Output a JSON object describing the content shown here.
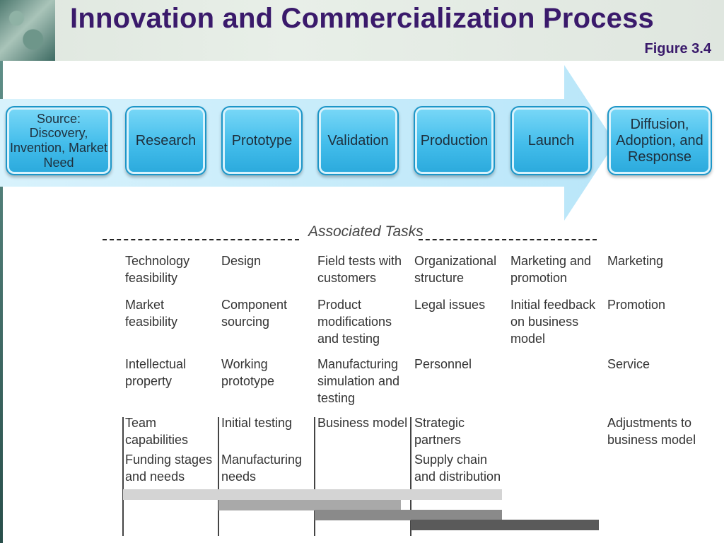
{
  "title": "Innovation and Commercialization Process",
  "figure_label": "Figure 3.4",
  "stages": [
    "Source: Discovery, Invention, Market Need",
    "Research",
    "Prototype",
    "Validation",
    "Production",
    "Launch",
    "Diffusion, Adoption, and Response"
  ],
  "associated_tasks_label": "Associated Tasks",
  "tasks": {
    "research": [
      "Technology feasibility",
      "Market feasibility",
      "Intellectual property",
      "Team capabilities",
      "Funding stages and needs"
    ],
    "prototype": [
      "Design",
      "Component sourcing",
      "Working prototype",
      "Initial testing",
      "Manufacturing needs"
    ],
    "validation": [
      "Field tests with customers",
      "Product modifications and testing",
      "Manufacturing simulation and testing",
      "Business model"
    ],
    "production": [
      "Organizational structure",
      "Legal issues",
      "Personnel",
      "Strategic partners",
      "Supply chain and distribution"
    ],
    "launch": [
      "Marketing and promotion",
      "Initial feedback on business model"
    ],
    "diffusion": [
      "Marketing",
      "Promotion",
      "Service",
      "Adjustments to business model"
    ]
  },
  "colors": {
    "title": "#3a1a6b",
    "stage_fill": "#43bdeb",
    "arrow_fill": "#c5ecfb"
  }
}
